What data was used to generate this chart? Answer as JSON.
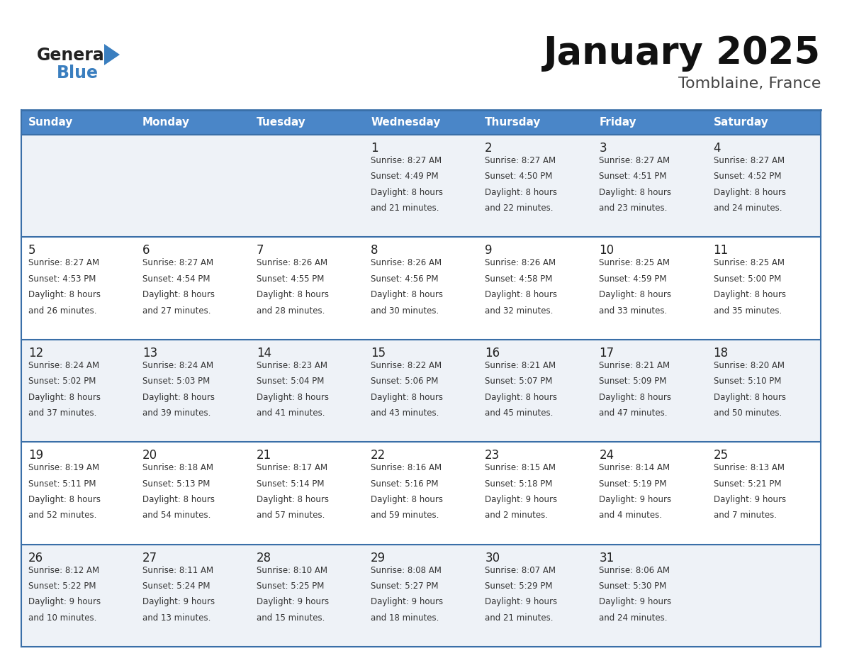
{
  "title": "January 2025",
  "subtitle": "Tomblaine, France",
  "days_of_week": [
    "Sunday",
    "Monday",
    "Tuesday",
    "Wednesday",
    "Thursday",
    "Friday",
    "Saturday"
  ],
  "header_bg": "#4a86c8",
  "header_text": "#ffffff",
  "row_bg_odd": "#eef2f7",
  "row_bg_even": "#ffffff",
  "border_color": "#3a6fa8",
  "day_num_color": "#222222",
  "cell_text_color": "#333333",
  "title_color": "#111111",
  "subtitle_color": "#444444",
  "logo_general_color": "#222222",
  "logo_blue_color": "#3a7ebf",
  "logo_triangle_color": "#3a7ebf",
  "calendar_data": [
    [
      null,
      null,
      null,
      {
        "day": 1,
        "sunrise": "8:27 AM",
        "sunset": "4:49 PM",
        "daylight": "8 hours and 21 minutes"
      },
      {
        "day": 2,
        "sunrise": "8:27 AM",
        "sunset": "4:50 PM",
        "daylight": "8 hours and 22 minutes"
      },
      {
        "day": 3,
        "sunrise": "8:27 AM",
        "sunset": "4:51 PM",
        "daylight": "8 hours and 23 minutes"
      },
      {
        "day": 4,
        "sunrise": "8:27 AM",
        "sunset": "4:52 PM",
        "daylight": "8 hours and 24 minutes"
      }
    ],
    [
      {
        "day": 5,
        "sunrise": "8:27 AM",
        "sunset": "4:53 PM",
        "daylight": "8 hours and 26 minutes"
      },
      {
        "day": 6,
        "sunrise": "8:27 AM",
        "sunset": "4:54 PM",
        "daylight": "8 hours and 27 minutes"
      },
      {
        "day": 7,
        "sunrise": "8:26 AM",
        "sunset": "4:55 PM",
        "daylight": "8 hours and 28 minutes"
      },
      {
        "day": 8,
        "sunrise": "8:26 AM",
        "sunset": "4:56 PM",
        "daylight": "8 hours and 30 minutes"
      },
      {
        "day": 9,
        "sunrise": "8:26 AM",
        "sunset": "4:58 PM",
        "daylight": "8 hours and 32 minutes"
      },
      {
        "day": 10,
        "sunrise": "8:25 AM",
        "sunset": "4:59 PM",
        "daylight": "8 hours and 33 minutes"
      },
      {
        "day": 11,
        "sunrise": "8:25 AM",
        "sunset": "5:00 PM",
        "daylight": "8 hours and 35 minutes"
      }
    ],
    [
      {
        "day": 12,
        "sunrise": "8:24 AM",
        "sunset": "5:02 PM",
        "daylight": "8 hours and 37 minutes"
      },
      {
        "day": 13,
        "sunrise": "8:24 AM",
        "sunset": "5:03 PM",
        "daylight": "8 hours and 39 minutes"
      },
      {
        "day": 14,
        "sunrise": "8:23 AM",
        "sunset": "5:04 PM",
        "daylight": "8 hours and 41 minutes"
      },
      {
        "day": 15,
        "sunrise": "8:22 AM",
        "sunset": "5:06 PM",
        "daylight": "8 hours and 43 minutes"
      },
      {
        "day": 16,
        "sunrise": "8:21 AM",
        "sunset": "5:07 PM",
        "daylight": "8 hours and 45 minutes"
      },
      {
        "day": 17,
        "sunrise": "8:21 AM",
        "sunset": "5:09 PM",
        "daylight": "8 hours and 47 minutes"
      },
      {
        "day": 18,
        "sunrise": "8:20 AM",
        "sunset": "5:10 PM",
        "daylight": "8 hours and 50 minutes"
      }
    ],
    [
      {
        "day": 19,
        "sunrise": "8:19 AM",
        "sunset": "5:11 PM",
        "daylight": "8 hours and 52 minutes"
      },
      {
        "day": 20,
        "sunrise": "8:18 AM",
        "sunset": "5:13 PM",
        "daylight": "8 hours and 54 minutes"
      },
      {
        "day": 21,
        "sunrise": "8:17 AM",
        "sunset": "5:14 PM",
        "daylight": "8 hours and 57 minutes"
      },
      {
        "day": 22,
        "sunrise": "8:16 AM",
        "sunset": "5:16 PM",
        "daylight": "8 hours and 59 minutes"
      },
      {
        "day": 23,
        "sunrise": "8:15 AM",
        "sunset": "5:18 PM",
        "daylight": "9 hours and 2 minutes"
      },
      {
        "day": 24,
        "sunrise": "8:14 AM",
        "sunset": "5:19 PM",
        "daylight": "9 hours and 4 minutes"
      },
      {
        "day": 25,
        "sunrise": "8:13 AM",
        "sunset": "5:21 PM",
        "daylight": "9 hours and 7 minutes"
      }
    ],
    [
      {
        "day": 26,
        "sunrise": "8:12 AM",
        "sunset": "5:22 PM",
        "daylight": "9 hours and 10 minutes"
      },
      {
        "day": 27,
        "sunrise": "8:11 AM",
        "sunset": "5:24 PM",
        "daylight": "9 hours and 13 minutes"
      },
      {
        "day": 28,
        "sunrise": "8:10 AM",
        "sunset": "5:25 PM",
        "daylight": "9 hours and 15 minutes"
      },
      {
        "day": 29,
        "sunrise": "8:08 AM",
        "sunset": "5:27 PM",
        "daylight": "9 hours and 18 minutes"
      },
      {
        "day": 30,
        "sunrise": "8:07 AM",
        "sunset": "5:29 PM",
        "daylight": "9 hours and 21 minutes"
      },
      {
        "day": 31,
        "sunrise": "8:06 AM",
        "sunset": "5:30 PM",
        "daylight": "9 hours and 24 minutes"
      },
      null
    ]
  ]
}
